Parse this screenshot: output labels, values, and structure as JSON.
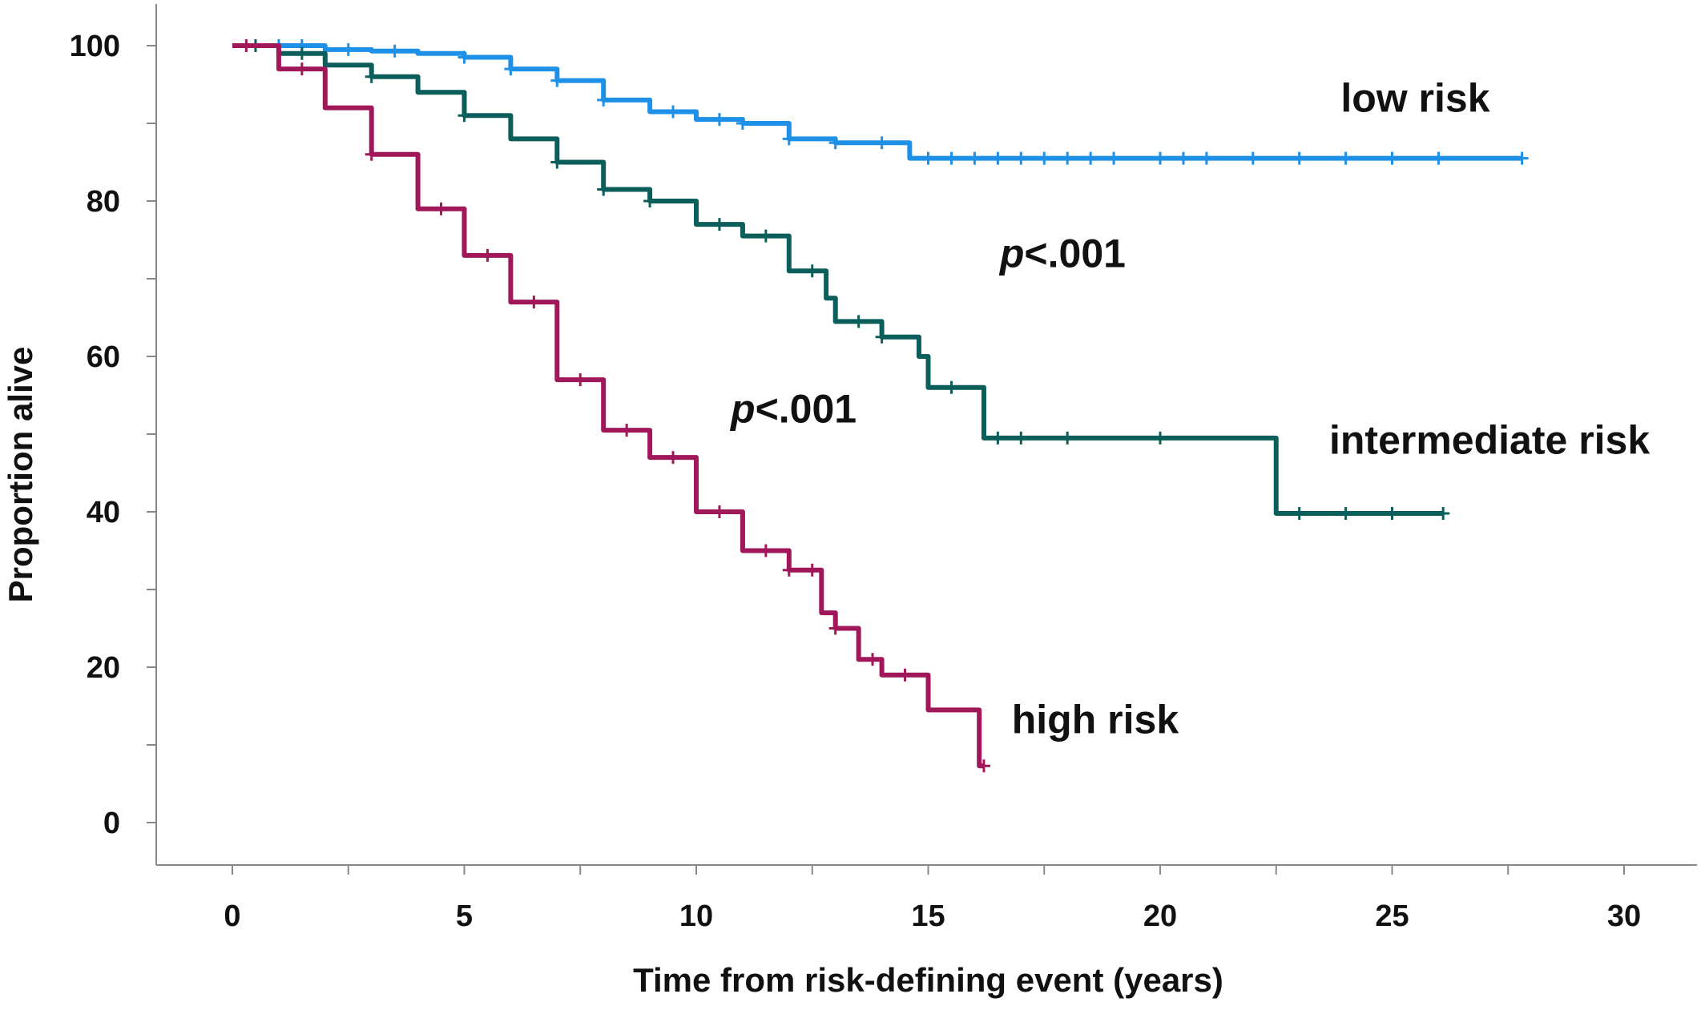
{
  "chart_data": {
    "type": "line",
    "title": "",
    "xlabel": "Time from risk-defining event (years)",
    "ylabel": "Proportion alive",
    "xlim": [
      0,
      30
    ],
    "ylim": [
      0,
      100
    ],
    "x_ticks": [
      "0",
      "5",
      "10",
      "15",
      "20",
      "25",
      "30"
    ],
    "y_ticks": [
      "0",
      "20",
      "40",
      "60",
      "80",
      "100"
    ],
    "grid": false,
    "legend": "none",
    "colors": {
      "low risk": "#1e90e8",
      "intermediate risk": "#0b5e5a",
      "high risk": "#a0175a"
    },
    "series": [
      {
        "name": "low risk",
        "step": true,
        "x": [
          0,
          1,
          2,
          3,
          4,
          5,
          6,
          7,
          8,
          9,
          10,
          11,
          12,
          13,
          14.5,
          14.6,
          18,
          22,
          27.8
        ],
        "y": [
          100,
          100,
          99.5,
          99.3,
          99,
          98.5,
          97,
          95.5,
          93,
          91.5,
          90.5,
          90,
          88,
          87.5,
          87.5,
          85.5,
          85.5,
          85.5,
          85.5
        ],
        "censor_x": [
          0.5,
          1,
          1.5,
          2.5,
          3.5,
          5,
          6,
          7,
          8,
          9.5,
          10.5,
          11,
          12,
          13,
          14,
          15,
          15.5,
          16,
          16.5,
          17,
          17.5,
          18,
          18.5,
          19,
          20,
          20.5,
          21,
          22,
          23,
          24,
          25,
          26,
          27.8
        ]
      },
      {
        "name": "intermediate risk",
        "step": true,
        "x": [
          0,
          1,
          2,
          3,
          4,
          5,
          6,
          7,
          8,
          9,
          10,
          11,
          12,
          12.8,
          13,
          14,
          14.8,
          15,
          16.1,
          16.2,
          22.4,
          22.5,
          26.1
        ],
        "y": [
          100,
          99,
          97.5,
          96,
          94,
          91,
          88,
          85,
          81.5,
          80,
          77,
          75.5,
          71,
          67.5,
          64.5,
          62.5,
          60,
          56,
          56,
          49.5,
          49.5,
          39.8,
          39.8
        ],
        "censor_x": [
          0.5,
          1.5,
          3,
          5,
          7,
          8,
          9,
          10.5,
          11.5,
          12.5,
          13.5,
          14,
          15.5,
          16.5,
          17,
          18,
          20,
          23,
          24,
          25,
          26.1
        ]
      },
      {
        "name": "high risk",
        "step": true,
        "x": [
          0,
          1,
          2,
          3,
          4,
          5,
          6,
          7,
          8,
          9,
          10,
          11,
          12,
          12.7,
          13,
          13.5,
          14,
          14.7,
          15,
          15.8,
          16.1,
          16.2
        ],
        "y": [
          100,
          97,
          92,
          86,
          79,
          73,
          67,
          57,
          50.5,
          47,
          40,
          35,
          32.5,
          27,
          25,
          21,
          19,
          19,
          14.5,
          14.5,
          7.3,
          7.3
        ],
        "censor_x": [
          0.3,
          1.5,
          3,
          4.5,
          5.5,
          6.5,
          7.5,
          8.5,
          9.5,
          10.5,
          11.5,
          12,
          12.5,
          13,
          13.8,
          14.5,
          16.2
        ]
      }
    ],
    "annotations": [
      {
        "text": "low risk",
        "x": 25.5,
        "y": 91.5
      },
      {
        "text": "intermediate risk",
        "x": 27.1,
        "y": 47.5
      },
      {
        "text": "high risk",
        "x": 18.6,
        "y": 11.5
      },
      {
        "p_symbol": "p",
        "p_value": "<.001",
        "x": 17.9,
        "y": 71.5
      },
      {
        "p_symbol": "p",
        "p_value": "<.001",
        "x": 12.1,
        "y": 51.5
      }
    ]
  }
}
